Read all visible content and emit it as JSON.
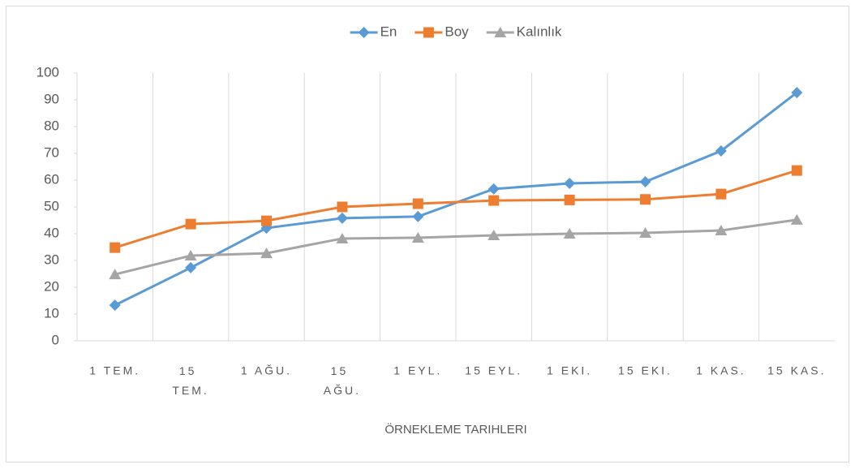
{
  "chart_data": {
    "type": "line",
    "x_label": "ÖRNEKLEME TARIHLERI",
    "categories": [
      "1 TEM.",
      "15 TEM.",
      "1 AĞU.",
      "15 AĞU.",
      "1 EYL.",
      "15 EYL.",
      "1 EKI.",
      "15 EKI.",
      "1 KAS.",
      "15 KAS."
    ],
    "series": [
      {
        "name": "En",
        "color": "#5b9bd5",
        "marker": "diamond",
        "values": [
          13.3,
          27.3,
          42.1,
          45.8,
          46.4,
          56.7,
          58.8,
          59.4,
          70.9,
          92.7
        ]
      },
      {
        "name": "Boy",
        "color": "#ed7d31",
        "marker": "square",
        "values": [
          34.8,
          43.6,
          44.8,
          50,
          51.2,
          52.4,
          52.6,
          52.8,
          54.8,
          63.6
        ]
      },
      {
        "name": "Kalınlık",
        "color": "#a5a5a5",
        "marker": "triangle",
        "values": [
          24.8,
          31.8,
          32.7,
          38.2,
          38.5,
          39.4,
          40,
          40.3,
          41.2,
          45.2
        ]
      }
    ],
    "ylim": [
      0,
      100
    ],
    "yticks": [
      0,
      10,
      20,
      30,
      40,
      50,
      60,
      70,
      80,
      90,
      100
    ],
    "legend": "top"
  }
}
